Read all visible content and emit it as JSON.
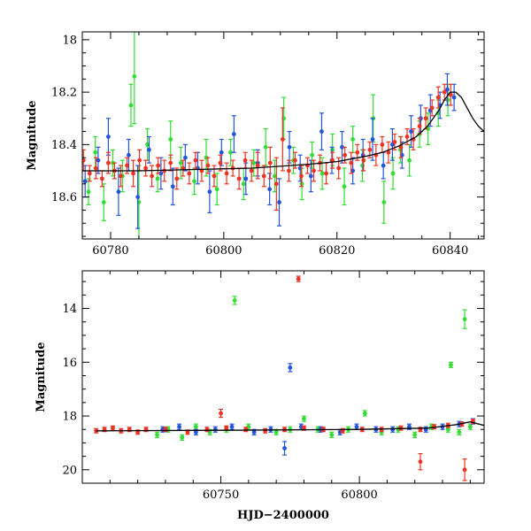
{
  "colors": {
    "green": "#33dd33",
    "blue": "#2255dd",
    "red": "#ee3322",
    "model": "#000000"
  },
  "chart_data": [
    {
      "type": "scatter",
      "xlabel": "",
      "ylabel": "Magnitude",
      "xlim": [
        60775,
        60846
      ],
      "ylim": [
        18.76,
        17.97
      ],
      "y_inverted": true,
      "xticks": [
        60780,
        60800,
        60820,
        60840
      ],
      "yticks": [
        18,
        18.2,
        18.4,
        18.6
      ],
      "model_curve": {
        "x": [
          60775,
          60785,
          60795,
          60805,
          60815,
          60820,
          60825,
          60828,
          60831,
          60834,
          60836,
          60838,
          60839,
          60840,
          60841,
          60842,
          60843,
          60844,
          60845,
          60846
        ],
        "y": [
          18.5,
          18.5,
          18.495,
          18.49,
          18.475,
          18.465,
          18.445,
          18.43,
          18.405,
          18.37,
          18.33,
          18.27,
          18.23,
          18.2,
          18.2,
          18.22,
          18.26,
          18.3,
          18.33,
          18.35
        ]
      },
      "series": [
        {
          "color": "green",
          "x": [
            60776.1,
            60777.3,
            60778.8,
            60780.4,
            60782.1,
            60783.6,
            60784.2,
            60785.0,
            60786.5,
            60788.3,
            60790.6,
            60792.4,
            60794.8,
            60796.9,
            60798.8,
            60801.2,
            60803.5,
            60805.3,
            60807.4,
            60809.0,
            60810.6,
            60812.3,
            60813.8,
            60815.6,
            60817.4,
            60819.2,
            60821.3,
            60822.8,
            60824.5,
            60826.4,
            60828.3,
            60829.9,
            60831.2,
            60832.8,
            60834.6,
            60836.1,
            60837.9,
            60839.6
          ],
          "y": [
            18.58,
            18.43,
            18.62,
            18.47,
            18.52,
            18.25,
            18.14,
            18.62,
            18.4,
            18.53,
            18.38,
            18.47,
            18.54,
            18.45,
            18.57,
            18.43,
            18.55,
            18.47,
            18.41,
            18.52,
            18.3,
            18.46,
            18.55,
            18.44,
            18.51,
            18.42,
            18.56,
            18.38,
            18.48,
            18.3,
            18.62,
            18.51,
            18.42,
            18.46,
            18.36,
            18.34,
            18.28,
            18.23
          ],
          "err": [
            0.05,
            0.06,
            0.07,
            0.05,
            0.06,
            0.08,
            0.18,
            0.14,
            0.06,
            0.05,
            0.07,
            0.06,
            0.05,
            0.07,
            0.06,
            0.05,
            0.06,
            0.05,
            0.07,
            0.06,
            0.08,
            0.05,
            0.06,
            0.05,
            0.06,
            0.06,
            0.07,
            0.05,
            0.06,
            0.09,
            0.08,
            0.06,
            0.05,
            0.06,
            0.05,
            0.06,
            0.05,
            0.06
          ]
        },
        {
          "color": "blue",
          "x": [
            60775.5,
            60777.8,
            60779.6,
            60781.4,
            60783.2,
            60784.8,
            60786.8,
            60788.9,
            60791.0,
            60793.2,
            60795.4,
            60797.5,
            60799.6,
            60801.8,
            60803.9,
            60806.0,
            60808.1,
            60809.8,
            60811.6,
            60813.5,
            60815.4,
            60817.3,
            60819.1,
            60820.9,
            60822.8,
            60824.6,
            60826.3,
            60828.2,
            60829.8,
            60831.5,
            60833.1,
            60834.8,
            60836.5,
            60838.2,
            60839.5,
            60840.7
          ],
          "y": [
            18.54,
            18.46,
            18.37,
            18.58,
            18.44,
            18.6,
            18.42,
            18.51,
            18.56,
            18.45,
            18.49,
            18.58,
            18.43,
            18.36,
            18.53,
            18.47,
            18.57,
            18.62,
            18.41,
            18.49,
            18.52,
            18.35,
            18.46,
            18.41,
            18.5,
            18.44,
            18.38,
            18.48,
            18.4,
            18.44,
            18.35,
            18.3,
            18.27,
            18.25,
            18.19,
            18.22
          ],
          "err": [
            0.06,
            0.05,
            0.07,
            0.09,
            0.06,
            0.12,
            0.05,
            0.06,
            0.07,
            0.05,
            0.06,
            0.08,
            0.05,
            0.07,
            0.06,
            0.05,
            0.06,
            0.09,
            0.06,
            0.05,
            0.06,
            0.07,
            0.05,
            0.06,
            0.05,
            0.06,
            0.08,
            0.05,
            0.06,
            0.05,
            0.06,
            0.05,
            0.06,
            0.05,
            0.06,
            0.05
          ]
        },
        {
          "color": "red",
          "x": [
            60775.2,
            60776.3,
            60777.4,
            60778.5,
            60779.6,
            60780.7,
            60781.8,
            60782.9,
            60784.0,
            60785.1,
            60786.2,
            60787.3,
            60788.4,
            60789.5,
            60790.6,
            60791.7,
            60792.8,
            60793.9,
            60795.0,
            60796.1,
            60797.2,
            60798.3,
            60799.4,
            60800.5,
            60801.6,
            60802.7,
            60803.8,
            60804.9,
            60806.0,
            60807.1,
            60808.2,
            60809.3,
            60810.4,
            60811.5,
            60812.6,
            60813.7,
            60814.8,
            60815.9,
            60817.0,
            60818.1,
            60819.2,
            60820.3,
            60821.4,
            60822.5,
            60823.6,
            60824.7,
            60825.8,
            60826.9,
            60828.0,
            60829.1,
            60830.2,
            60831.3,
            60832.4,
            60833.5,
            60834.6,
            60835.7,
            60836.8,
            60837.9,
            60839.0,
            60840.1
          ],
          "y": [
            18.46,
            18.51,
            18.49,
            18.53,
            18.47,
            18.5,
            18.52,
            18.48,
            18.51,
            18.46,
            18.49,
            18.52,
            18.48,
            18.5,
            18.47,
            18.53,
            18.49,
            18.51,
            18.46,
            18.5,
            18.48,
            18.52,
            18.47,
            18.51,
            18.49,
            18.53,
            18.46,
            18.5,
            18.48,
            18.52,
            18.47,
            18.55,
            18.38,
            18.5,
            18.46,
            18.52,
            18.48,
            18.5,
            18.47,
            18.51,
            18.46,
            18.49,
            18.44,
            18.47,
            18.43,
            18.46,
            18.42,
            18.44,
            18.4,
            18.43,
            18.39,
            18.41,
            18.37,
            18.38,
            18.33,
            18.3,
            18.26,
            18.22,
            18.2,
            18.21
          ],
          "err": [
            0.04,
            0.03,
            0.04,
            0.03,
            0.04,
            0.03,
            0.04,
            0.03,
            0.05,
            0.04,
            0.03,
            0.04,
            0.03,
            0.04,
            0.03,
            0.04,
            0.03,
            0.04,
            0.03,
            0.04,
            0.03,
            0.04,
            0.03,
            0.04,
            0.03,
            0.04,
            0.03,
            0.04,
            0.05,
            0.04,
            0.06,
            0.1,
            0.12,
            0.04,
            0.03,
            0.04,
            0.03,
            0.04,
            0.03,
            0.04,
            0.03,
            0.04,
            0.03,
            0.04,
            0.03,
            0.04,
            0.03,
            0.04,
            0.03,
            0.04,
            0.03,
            0.04,
            0.03,
            0.04,
            0.03,
            0.04,
            0.03,
            0.04,
            0.03,
            0.04
          ]
        }
      ]
    },
    {
      "type": "scatter",
      "xlabel": "HJD−2400000",
      "ylabel": "Magnitude",
      "xlim": [
        60700,
        60845
      ],
      "ylim": [
        20.5,
        12.6
      ],
      "y_inverted": true,
      "xticks": [
        60750,
        60800
      ],
      "yticks": [
        14,
        16,
        18,
        20
      ],
      "model_curve": {
        "x": [
          60705,
          60750,
          60800,
          60825,
          60835,
          60840,
          60845
        ],
        "y": [
          18.55,
          18.53,
          18.5,
          18.45,
          18.32,
          18.22,
          18.35
        ]
      },
      "series": [
        {
          "color": "green",
          "x": [
            60727,
            60731,
            60736,
            60741,
            60746,
            60752,
            60760,
            60770,
            60775,
            60780,
            60785,
            60790,
            60796,
            60802,
            60808,
            60814,
            60820,
            60826,
            60832,
            60836,
            60840,
            60755,
            60833,
            60838
          ],
          "y": [
            18.7,
            18.5,
            18.8,
            18.4,
            18.6,
            18.5,
            18.4,
            18.6,
            18.5,
            18.1,
            18.5,
            18.7,
            18.5,
            17.9,
            18.6,
            18.5,
            18.7,
            18.4,
            18.5,
            18.6,
            18.4,
            13.7,
            16.1,
            14.4
          ],
          "err": [
            0.1,
            0.1,
            0.1,
            0.1,
            0.1,
            0.1,
            0.1,
            0.1,
            0.1,
            0.1,
            0.1,
            0.1,
            0.1,
            0.1,
            0.1,
            0.1,
            0.1,
            0.1,
            0.1,
            0.1,
            0.1,
            0.15,
            0.1,
            0.35
          ]
        },
        {
          "color": "blue",
          "x": [
            60729,
            60735,
            60741,
            60748,
            60754,
            60762,
            60768,
            60773,
            60779,
            60786,
            60793,
            60799,
            60806,
            60812,
            60818,
            60824,
            60830,
            60836,
            60841,
            60775
          ],
          "y": [
            18.5,
            18.4,
            18.6,
            18.5,
            18.4,
            18.6,
            18.5,
            19.2,
            18.4,
            18.5,
            18.6,
            18.4,
            18.5,
            18.5,
            18.4,
            18.5,
            18.4,
            18.3,
            18.2,
            16.2
          ],
          "err": [
            0.1,
            0.1,
            0.1,
            0.1,
            0.1,
            0.1,
            0.1,
            0.25,
            0.1,
            0.1,
            0.1,
            0.1,
            0.1,
            0.1,
            0.1,
            0.1,
            0.1,
            0.1,
            0.1,
            0.15
          ]
        },
        {
          "color": "red",
          "x": [
            60705,
            60708,
            60711,
            60714,
            60717,
            60720,
            60723,
            60730,
            60738,
            60745,
            60752,
            60759,
            60766,
            60773,
            60780,
            60787,
            60794,
            60801,
            60808,
            60815,
            60822,
            60827,
            60832,
            60837,
            60841,
            60750,
            60778,
            60822,
            60838
          ],
          "y": [
            18.55,
            18.5,
            18.45,
            18.55,
            18.5,
            18.6,
            18.5,
            18.5,
            18.6,
            18.5,
            18.45,
            18.5,
            18.55,
            18.5,
            18.45,
            18.5,
            18.55,
            18.5,
            18.5,
            18.45,
            18.5,
            18.4,
            18.35,
            18.3,
            18.2,
            17.9,
            12.9,
            19.7,
            20.0
          ],
          "err": [
            0.08,
            0.08,
            0.08,
            0.08,
            0.08,
            0.08,
            0.08,
            0.08,
            0.08,
            0.08,
            0.08,
            0.08,
            0.08,
            0.08,
            0.08,
            0.08,
            0.08,
            0.08,
            0.08,
            0.08,
            0.08,
            0.08,
            0.08,
            0.08,
            0.08,
            0.15,
            0.1,
            0.3,
            0.4
          ]
        }
      ]
    }
  ]
}
